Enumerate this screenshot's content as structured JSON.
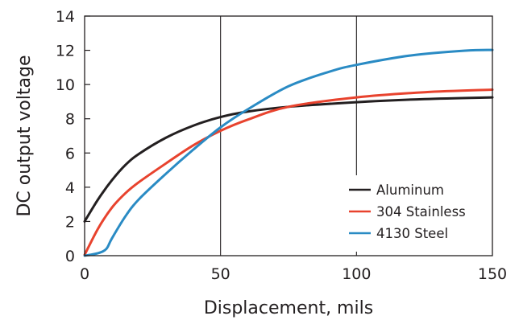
{
  "chart_data": {
    "type": "line",
    "title": "",
    "xlabel": "Displacement, mils",
    "ylabel": "DC output voltage",
    "xlim": [
      0,
      150
    ],
    "ylim": [
      0,
      14
    ],
    "xticks": [
      0,
      50,
      100,
      150
    ],
    "yticks": [
      0,
      2,
      4,
      6,
      8,
      10,
      12,
      14
    ],
    "xtick_labels": [
      "0",
      "50",
      "100",
      "150"
    ],
    "ytick_labels": [
      "0",
      "2",
      "4",
      "6",
      "8",
      "10",
      "12",
      "14"
    ],
    "grid": {
      "x": true,
      "y": false
    },
    "legend_position": "bottom-right",
    "series": [
      {
        "name": "Aluminum",
        "color": "#231f20",
        "points": [
          [
            0,
            2.0
          ],
          [
            5,
            3.3
          ],
          [
            10,
            4.4
          ],
          [
            15,
            5.3
          ],
          [
            20,
            5.95
          ],
          [
            30,
            6.9
          ],
          [
            40,
            7.6
          ],
          [
            50,
            8.1
          ],
          [
            60,
            8.42
          ],
          [
            75,
            8.7
          ],
          [
            100,
            8.97
          ],
          [
            125,
            9.15
          ],
          [
            150,
            9.25
          ]
        ]
      },
      {
        "name": "304 Stainless",
        "color": "#e8432e",
        "points": [
          [
            0,
            0.05
          ],
          [
            5,
            1.6
          ],
          [
            10,
            2.8
          ],
          [
            15,
            3.65
          ],
          [
            20,
            4.3
          ],
          [
            30,
            5.4
          ],
          [
            40,
            6.45
          ],
          [
            50,
            7.3
          ],
          [
            60,
            7.95
          ],
          [
            75,
            8.7
          ],
          [
            100,
            9.25
          ],
          [
            125,
            9.55
          ],
          [
            150,
            9.7
          ]
        ]
      },
      {
        "name": "4130 Steel",
        "color": "#2a8bc4",
        "points": [
          [
            0,
            0.0
          ],
          [
            5,
            0.15
          ],
          [
            8,
            0.4
          ],
          [
            10,
            1.0
          ],
          [
            15,
            2.3
          ],
          [
            20,
            3.3
          ],
          [
            30,
            4.8
          ],
          [
            40,
            6.2
          ],
          [
            50,
            7.5
          ],
          [
            60,
            8.55
          ],
          [
            75,
            9.9
          ],
          [
            90,
            10.75
          ],
          [
            100,
            11.15
          ],
          [
            120,
            11.7
          ],
          [
            140,
            11.98
          ],
          [
            150,
            12.02
          ]
        ]
      }
    ]
  }
}
